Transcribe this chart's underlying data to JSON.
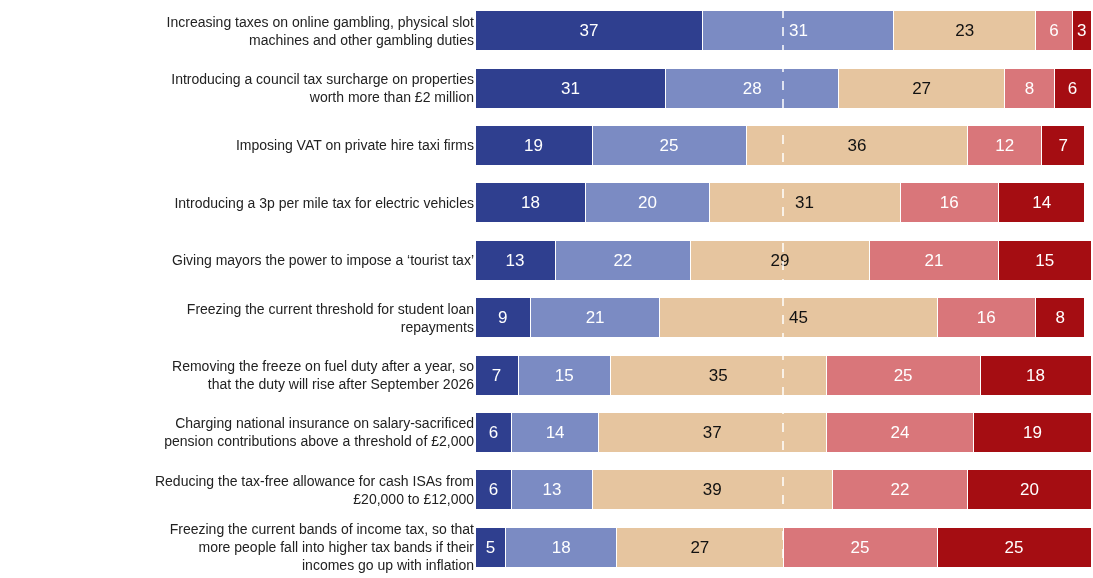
{
  "chart_data": {
    "type": "bar",
    "orientation": "horizontal",
    "stacked": true,
    "data_labels": true,
    "tick_labels": "y",
    "xlim": [
      0,
      100
    ],
    "categories": [
      "Increasing taxes on online gambling, physical slot machines and other gambling duties",
      "Introducing a council tax surcharge on properties worth more than £2 million",
      "Imposing VAT on private hire taxi firms",
      "Introducing a 3p per mile tax for electric vehicles",
      "Giving mayors the power to impose a ‘tourist tax’",
      "Freezing the current threshold for student loan repayments",
      "Removing the freeze on fuel duty after a year, so that the duty will rise after September 2026",
      "Charging national insurance on salary-sacrificed pension contributions above a threshold of £2,000",
      "Reducing the tax-free allowance for cash ISAs from £20,000 to £12,000",
      "Freezing the current bands of income tax, so that more people fall into higher tax bands if their incomes go up with inflation"
    ],
    "series": [
      {
        "color": "#2f3f8f",
        "values": [
          37,
          31,
          19,
          18,
          13,
          9,
          7,
          6,
          6,
          5
        ]
      },
      {
        "color": "#7b8bc3",
        "values": [
          31,
          28,
          25,
          20,
          22,
          21,
          15,
          14,
          13,
          18
        ]
      },
      {
        "color": "#e6c59f",
        "values": [
          23,
          27,
          36,
          31,
          29,
          45,
          35,
          37,
          39,
          27
        ]
      },
      {
        "color": "#d9767a",
        "values": [
          6,
          8,
          12,
          16,
          21,
          16,
          25,
          24,
          22,
          25
        ]
      },
      {
        "color": "#a50d12",
        "values": [
          3,
          6,
          7,
          14,
          15,
          8,
          18,
          19,
          20,
          25
        ]
      }
    ],
    "ref_lines": [
      {
        "axis": "x",
        "value": 50,
        "color": "#ffffff",
        "line_style": "dashed"
      }
    ]
  }
}
